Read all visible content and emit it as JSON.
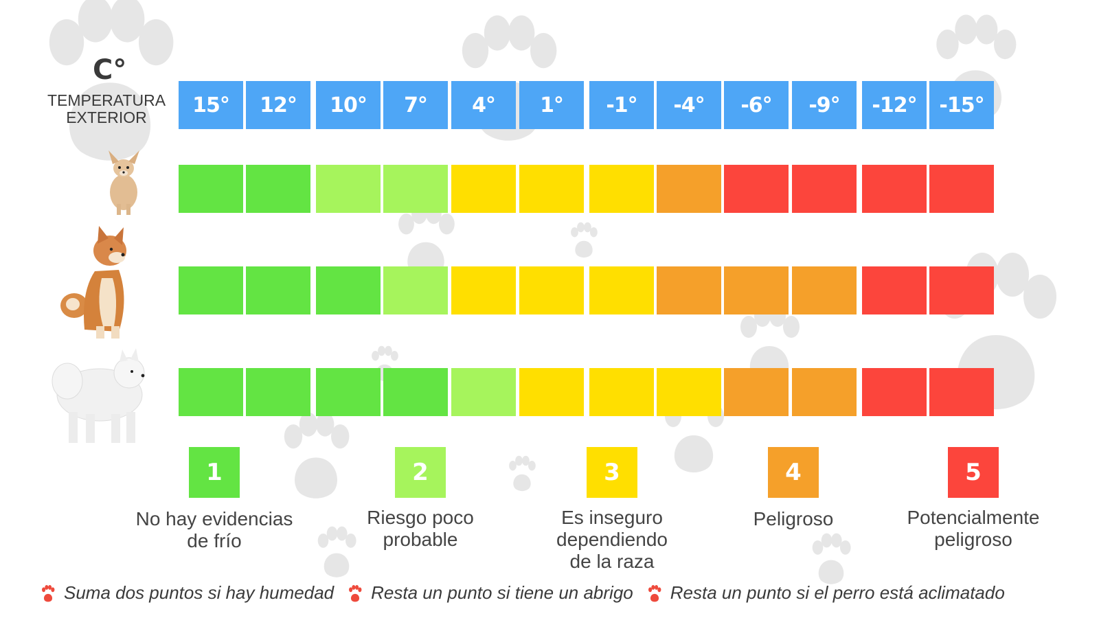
{
  "header": {
    "unit": "C°",
    "label_line1": "TEMPERATURA",
    "label_line2": "EXTERIOR"
  },
  "chart_data": {
    "type": "heatmap",
    "temperatures": [
      "15°",
      "12°",
      "10°",
      "7°",
      "4°",
      "1°",
      "-1°",
      "-4°",
      "-6°",
      "-9°",
      "-12°",
      "-15°"
    ],
    "rows": [
      {
        "dog": "small-dog-chihuahua",
        "levels": [
          1,
          1,
          2,
          2,
          3,
          3,
          3,
          4,
          5,
          5,
          5,
          5
        ]
      },
      {
        "dog": "medium-dog-shiba",
        "levels": [
          1,
          1,
          1,
          2,
          3,
          3,
          3,
          4,
          4,
          4,
          5,
          5
        ]
      },
      {
        "dog": "large-dog-samoyed",
        "levels": [
          1,
          1,
          1,
          1,
          2,
          3,
          3,
          3,
          4,
          4,
          5,
          5
        ]
      }
    ],
    "level_colors": {
      "1": "#63e443",
      "2": "#a6f45c",
      "3": "#ffdf00",
      "4": "#f5a02a",
      "5": "#fc453c"
    }
  },
  "legend": [
    {
      "num": "1",
      "lines": [
        "No hay evidencias",
        "de frío"
      ],
      "color": "#63e443"
    },
    {
      "num": "2",
      "lines": [
        "Riesgo poco",
        "probable"
      ],
      "color": "#a6f45c"
    },
    {
      "num": "3",
      "lines": [
        "Es inseguro",
        "dependiendo",
        "de la raza"
      ],
      "color": "#ffdf00"
    },
    {
      "num": "4",
      "lines": [
        "Peligroso"
      ],
      "color": "#f5a02a"
    },
    {
      "num": "5",
      "lines": [
        "Potencialmente",
        "peligroso"
      ],
      "color": "#fc453c"
    }
  ],
  "footnotes": [
    "Suma dos puntos si hay humedad",
    "Resta un punto si tiene un abrigo",
    "Resta un punto si el perro está aclimatado"
  ]
}
